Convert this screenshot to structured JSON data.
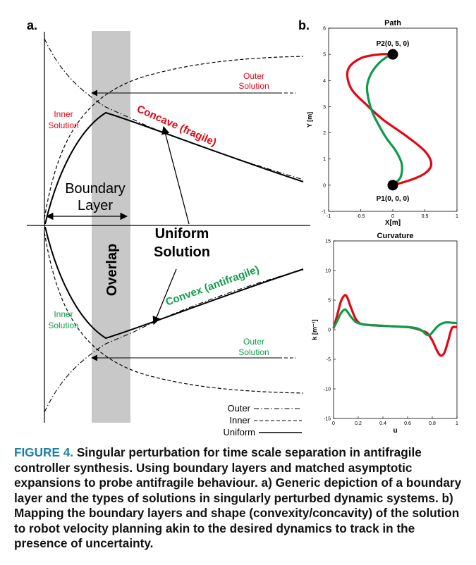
{
  "panel_a": {
    "label": "a.",
    "overlap_label": "Overlap",
    "boundary_layer_line1": "Boundary",
    "boundary_layer_line2": "Layer",
    "uniform_solution_line1": "Uniform",
    "uniform_solution_line2": "Solution",
    "concave_label": "Concave (fragile)",
    "convex_label": "Convex (antifragile)",
    "outer_solution_line1": "Outer",
    "outer_solution_line2": "Solution",
    "inner_solution_line1": "Inner",
    "inner_solution_line2": "Solution",
    "legend": [
      "Outer",
      "Inner",
      "Uniform"
    ],
    "colors": {
      "concave": "#e30613",
      "convex": "#0e9b49",
      "overlap": "#c8c8c8"
    }
  },
  "panel_b": {
    "label": "b."
  },
  "chart_data": [
    {
      "type": "line",
      "title": "Path",
      "xlabel": "X[m]",
      "ylabel": "Y [m]",
      "xlim": [
        -1,
        1
      ],
      "ylim": [
        -1,
        6
      ],
      "xticks": [
        "-1",
        "-0.5",
        "0",
        "0.5",
        "1"
      ],
      "yticks": [
        "-1",
        "0",
        "1",
        "2",
        "3",
        "4",
        "5",
        "6"
      ],
      "points": [
        {
          "label": "P1(0, 0, 0)",
          "x": 0,
          "y": 0
        },
        {
          "label": "P2(0, 5, 0)",
          "x": 0,
          "y": 5
        }
      ],
      "series": [
        {
          "color": "#e30613",
          "x": [
            0,
            0.28,
            0.5,
            0.6,
            0.5,
            0.2,
            -0.15,
            -0.4,
            -0.65,
            -0.7,
            -0.5,
            -0.2,
            0
          ],
          "y": [
            0,
            0.2,
            0.45,
            0.8,
            1.3,
            1.9,
            2.5,
            3.05,
            3.7,
            4.4,
            4.85,
            5.0,
            5.0
          ]
        },
        {
          "color": "#0e9b49",
          "x": [
            0,
            0.12,
            0.14,
            0.05,
            -0.1,
            -0.22,
            -0.32,
            -0.38,
            -0.4,
            -0.33,
            -0.2,
            -0.08,
            0
          ],
          "y": [
            0,
            0.3,
            0.8,
            1.3,
            1.8,
            2.3,
            2.8,
            3.3,
            3.8,
            4.3,
            4.7,
            4.92,
            5.0
          ]
        }
      ]
    },
    {
      "type": "line",
      "title": "Curvature",
      "xlabel": "u",
      "ylabel": "k [m⁻¹]",
      "xlim": [
        0,
        1
      ],
      "ylim": [
        -15,
        15
      ],
      "xticks": [
        "0",
        "0.2",
        "0.4",
        "0.6",
        "0.8",
        "1"
      ],
      "yticks": [
        "-15",
        "-10",
        "-5",
        "0",
        "5",
        "10",
        "15"
      ],
      "series": [
        {
          "color": "#e30613",
          "x": [
            0,
            0.03,
            0.06,
            0.09,
            0.11,
            0.14,
            0.18,
            0.22,
            0.28,
            0.36,
            0.45,
            0.55,
            0.62,
            0.68,
            0.72,
            0.76,
            0.8,
            0.84,
            0.87,
            0.9,
            0.93,
            0.96,
            1.0
          ],
          "y": [
            0.2,
            2.5,
            4.8,
            5.8,
            5.5,
            3.8,
            1.8,
            1.0,
            0.8,
            0.7,
            0.6,
            0.5,
            0.4,
            0.1,
            -0.2,
            -0.6,
            -1.8,
            -3.6,
            -4.4,
            -3.8,
            -1.8,
            0.3,
            0.4
          ]
        },
        {
          "color": "#0e9b49",
          "x": [
            0,
            0.03,
            0.06,
            0.09,
            0.11,
            0.14,
            0.18,
            0.22,
            0.28,
            0.36,
            0.45,
            0.55,
            0.62,
            0.68,
            0.72,
            0.75,
            0.78,
            0.81,
            0.85,
            0.9,
            0.95,
            1.0
          ],
          "y": [
            0.3,
            1.5,
            2.8,
            3.4,
            3.1,
            2.2,
            1.3,
            1.0,
            0.8,
            0.7,
            0.6,
            0.5,
            0.4,
            0.2,
            -0.2,
            -0.8,
            -0.9,
            -0.2,
            0.7,
            1.2,
            1.2,
            1.1
          ]
        }
      ]
    }
  ],
  "caption": {
    "label": "FIGURE 4.",
    "text": " Singular perturbation for time scale separation in antifragile controller synthesis. Using boundary layers and matched asymptotic expansions to probe antifragile behaviour. a) Generic depiction of a boundary layer and the types of solutions in singularly perturbed dynamic systems. b) Mapping the boundary layers and shape (convexity/concavity) of the solution to robot velocity planning akin to the desired dynamics to track in the presence of uncertainty."
  }
}
